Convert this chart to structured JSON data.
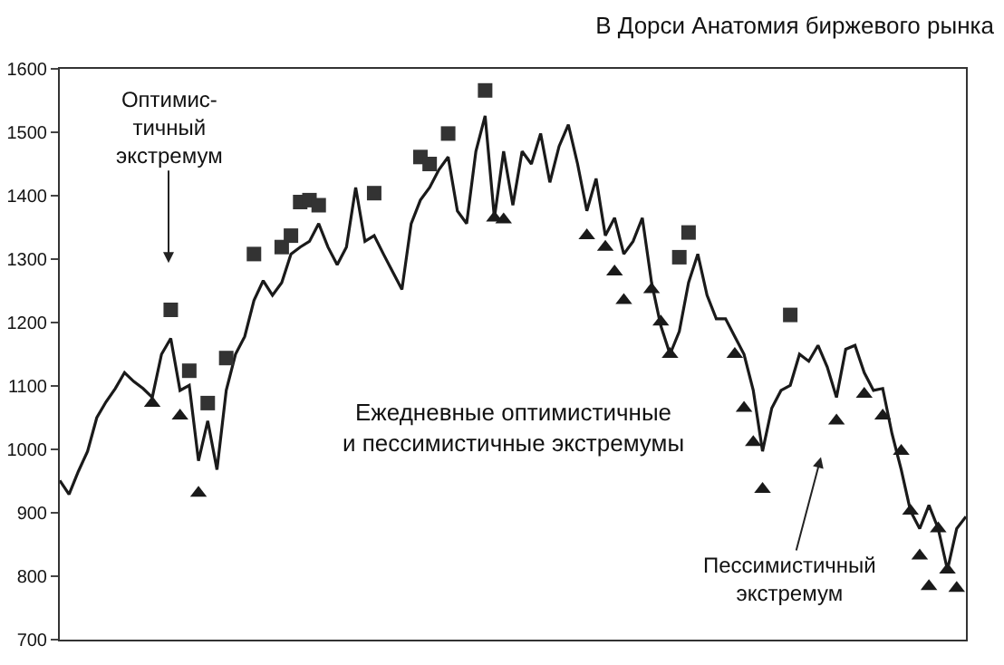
{
  "chart_data": {
    "type": "line",
    "title": "В Дорси Анатомия биржевого рынка",
    "annotations": [
      "Ежедневные оптимистичные\nи пессимистичные экстремумы",
      "Оптимис-\nтичный\nэкстремум",
      "Пессимистичный\nэкстремум"
    ],
    "categories": [
      null,
      null,
      null,
      null,
      null,
      null,
      null,
      null,
      null,
      null,
      null,
      null,
      null,
      null,
      null,
      null,
      null,
      null,
      null,
      null,
      null,
      null,
      null,
      null,
      null,
      null,
      null,
      null,
      null,
      null,
      null,
      null,
      null,
      null,
      null,
      null,
      null,
      null,
      null,
      null,
      null,
      null,
      null,
      null,
      null,
      null,
      null,
      null,
      null,
      null,
      null,
      null,
      null,
      null,
      null,
      null,
      null,
      null,
      null,
      null,
      null,
      null,
      null,
      null,
      null,
      null,
      null,
      null,
      null,
      null,
      null,
      null,
      null,
      null,
      null,
      null,
      null,
      null,
      null,
      null,
      null,
      null,
      null,
      null,
      null,
      null,
      null,
      null,
      null,
      null,
      null,
      null,
      null,
      null,
      null,
      null,
      null,
      null,
      null
    ],
    "ylim": [
      700,
      1600
    ],
    "yticks": [
      700,
      800,
      900,
      1000,
      1100,
      1200,
      1300,
      1400,
      1500,
      1600
    ],
    "tick_labels": "y",
    "grid": false,
    "series": [
      {
        "color": "#1a1a1a",
        "marker": "none",
        "line_style": "solid",
        "values": [
          951,
          929,
          965,
          997,
          1050,
          1075,
          1096,
          1121,
          1107,
          1096,
          1082,
          1150,
          1175,
          1093,
          1101,
          982,
          1045,
          968,
          1093,
          1150,
          1178,
          1235,
          1266,
          1243,
          1263,
          1308,
          1319,
          1328,
          1356,
          1319,
          1291,
          1319,
          1413,
          1328,
          1337,
          1308,
          1280,
          1252,
          1356,
          1393,
          1413,
          1441,
          1461,
          1376,
          1356,
          1470,
          1526,
          1365,
          1470,
          1385,
          1470,
          1450,
          1498,
          1421,
          1478,
          1512,
          1450,
          1376,
          1427,
          1337,
          1365,
          1308,
          1328,
          1365,
          1263,
          1195,
          1150,
          1186,
          1263,
          1308,
          1243,
          1206,
          1206,
          1178,
          1150,
          1093,
          997,
          1065,
          1093,
          1101,
          1150,
          1139,
          1164,
          1130,
          1082,
          1158,
          1164,
          1121,
          1093,
          1096,
          1025,
          968,
          903,
          875,
          912,
          875,
          810,
          875,
          894
        ]
      },
      {
        "type": "scatter",
        "color": "#333333",
        "marker": "square",
        "values": [
          null,
          null,
          null,
          null,
          null,
          null,
          null,
          null,
          null,
          null,
          null,
          null,
          1220,
          null,
          1124,
          null,
          1073,
          null,
          1144,
          null,
          null,
          1308,
          null,
          null,
          1319,
          1337,
          1390,
          1393,
          1385,
          null,
          null,
          null,
          null,
          null,
          1404,
          null,
          null,
          null,
          null,
          1461,
          1450,
          null,
          1498,
          null,
          null,
          null,
          1566,
          null,
          null,
          null,
          null,
          null,
          null,
          null,
          null,
          null,
          null,
          null,
          null,
          null,
          null,
          null,
          null,
          null,
          null,
          null,
          null,
          1303,
          1342,
          null,
          null,
          null,
          null,
          null,
          null,
          null,
          null,
          null,
          null,
          1212,
          null,
          null,
          null,
          null,
          null,
          null,
          null,
          null,
          null,
          null,
          null,
          null,
          null,
          null,
          null,
          null,
          null,
          null,
          null
        ]
      },
      {
        "type": "scatter",
        "color": "#1a1a1a",
        "marker": "triangle",
        "values": [
          null,
          null,
          null,
          null,
          null,
          null,
          null,
          null,
          null,
          null,
          1073,
          null,
          null,
          1053,
          null,
          931,
          null,
          null,
          null,
          null,
          null,
          null,
          null,
          null,
          null,
          null,
          null,
          null,
          null,
          null,
          null,
          null,
          null,
          null,
          null,
          null,
          null,
          null,
          null,
          null,
          null,
          null,
          null,
          null,
          null,
          null,
          null,
          1365,
          1362,
          null,
          null,
          null,
          null,
          null,
          null,
          null,
          null,
          1337,
          null,
          1319,
          1280,
          1235,
          null,
          null,
          1252,
          1201,
          1150,
          null,
          null,
          null,
          null,
          null,
          null,
          1150,
          1065,
          1011,
          937,
          null,
          null,
          null,
          null,
          null,
          null,
          null,
          1045,
          null,
          null,
          1087,
          null,
          1053,
          null,
          997,
          903,
          832,
          784,
          875,
          810,
          781,
          null
        ]
      }
    ]
  }
}
